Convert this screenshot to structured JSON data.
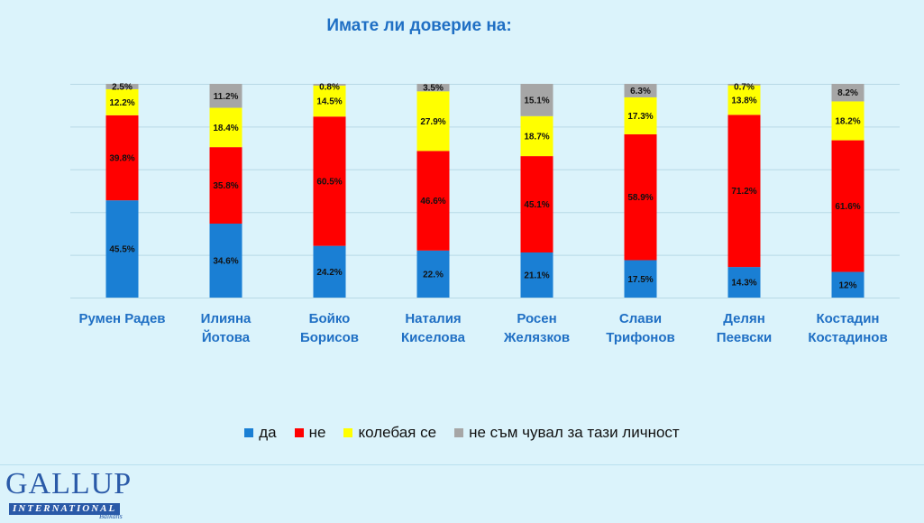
{
  "chart_data": {
    "type": "bar",
    "stacked": true,
    "title": "Имате  ли доверие на:",
    "categories": [
      [
        "Румен Радев"
      ],
      [
        "Илияна",
        "Йотова"
      ],
      [
        "Бойко",
        "Борисов"
      ],
      [
        "Наталия",
        "Киселова"
      ],
      [
        "Росен",
        "Желязков"
      ],
      [
        "Слави",
        "Трифонов"
      ],
      [
        "Делян",
        "Пеевски"
      ],
      [
        "Костадин",
        "Костадинов"
      ]
    ],
    "series": [
      {
        "name": "да",
        "color": "#1a7fd4",
        "values": [
          45.5,
          34.6,
          24.2,
          22,
          21.1,
          17.5,
          14.3,
          12
        ],
        "labels": [
          "45.5%",
          "34.6%",
          "24.2%",
          "22.%",
          "21.1%",
          "17.5%",
          "14.3%",
          "12%"
        ]
      },
      {
        "name": "не",
        "color": "#ff0000",
        "values": [
          39.8,
          35.8,
          60.5,
          46.6,
          45.1,
          58.9,
          71.2,
          61.6
        ],
        "labels": [
          "39.8%",
          "35.8%",
          "60.5%",
          "46.6%",
          "45.1%",
          "58.9%",
          "71.2%",
          "61.6%"
        ]
      },
      {
        "name": "колебая се",
        "color": "#ffff00",
        "values": [
          12.2,
          18.4,
          14.5,
          27.9,
          18.7,
          17.3,
          13.8,
          18.2
        ],
        "labels": [
          "12.2%",
          "18.4%",
          "14.5%",
          "27.9%",
          "18.7%",
          "17.3%",
          "13.8%",
          "18.2%"
        ]
      },
      {
        "name": "не съм чувал за тази личност",
        "color": "#a6a6a6",
        "values": [
          2.5,
          11.2,
          0.8,
          3.5,
          15.1,
          6.3,
          0.7,
          8.2
        ],
        "labels": [
          "2.5%",
          "11.2%",
          "0.8%",
          "3.5%",
          "15.1%",
          "6.3%",
          "0.7%",
          "8.2%"
        ]
      }
    ],
    "ylim": [
      0,
      100
    ],
    "grid": true,
    "legend_position": "bottom"
  },
  "logo": {
    "main": "GALLUP",
    "sub": "INTERNATIONAL",
    "region": "Balkans"
  }
}
